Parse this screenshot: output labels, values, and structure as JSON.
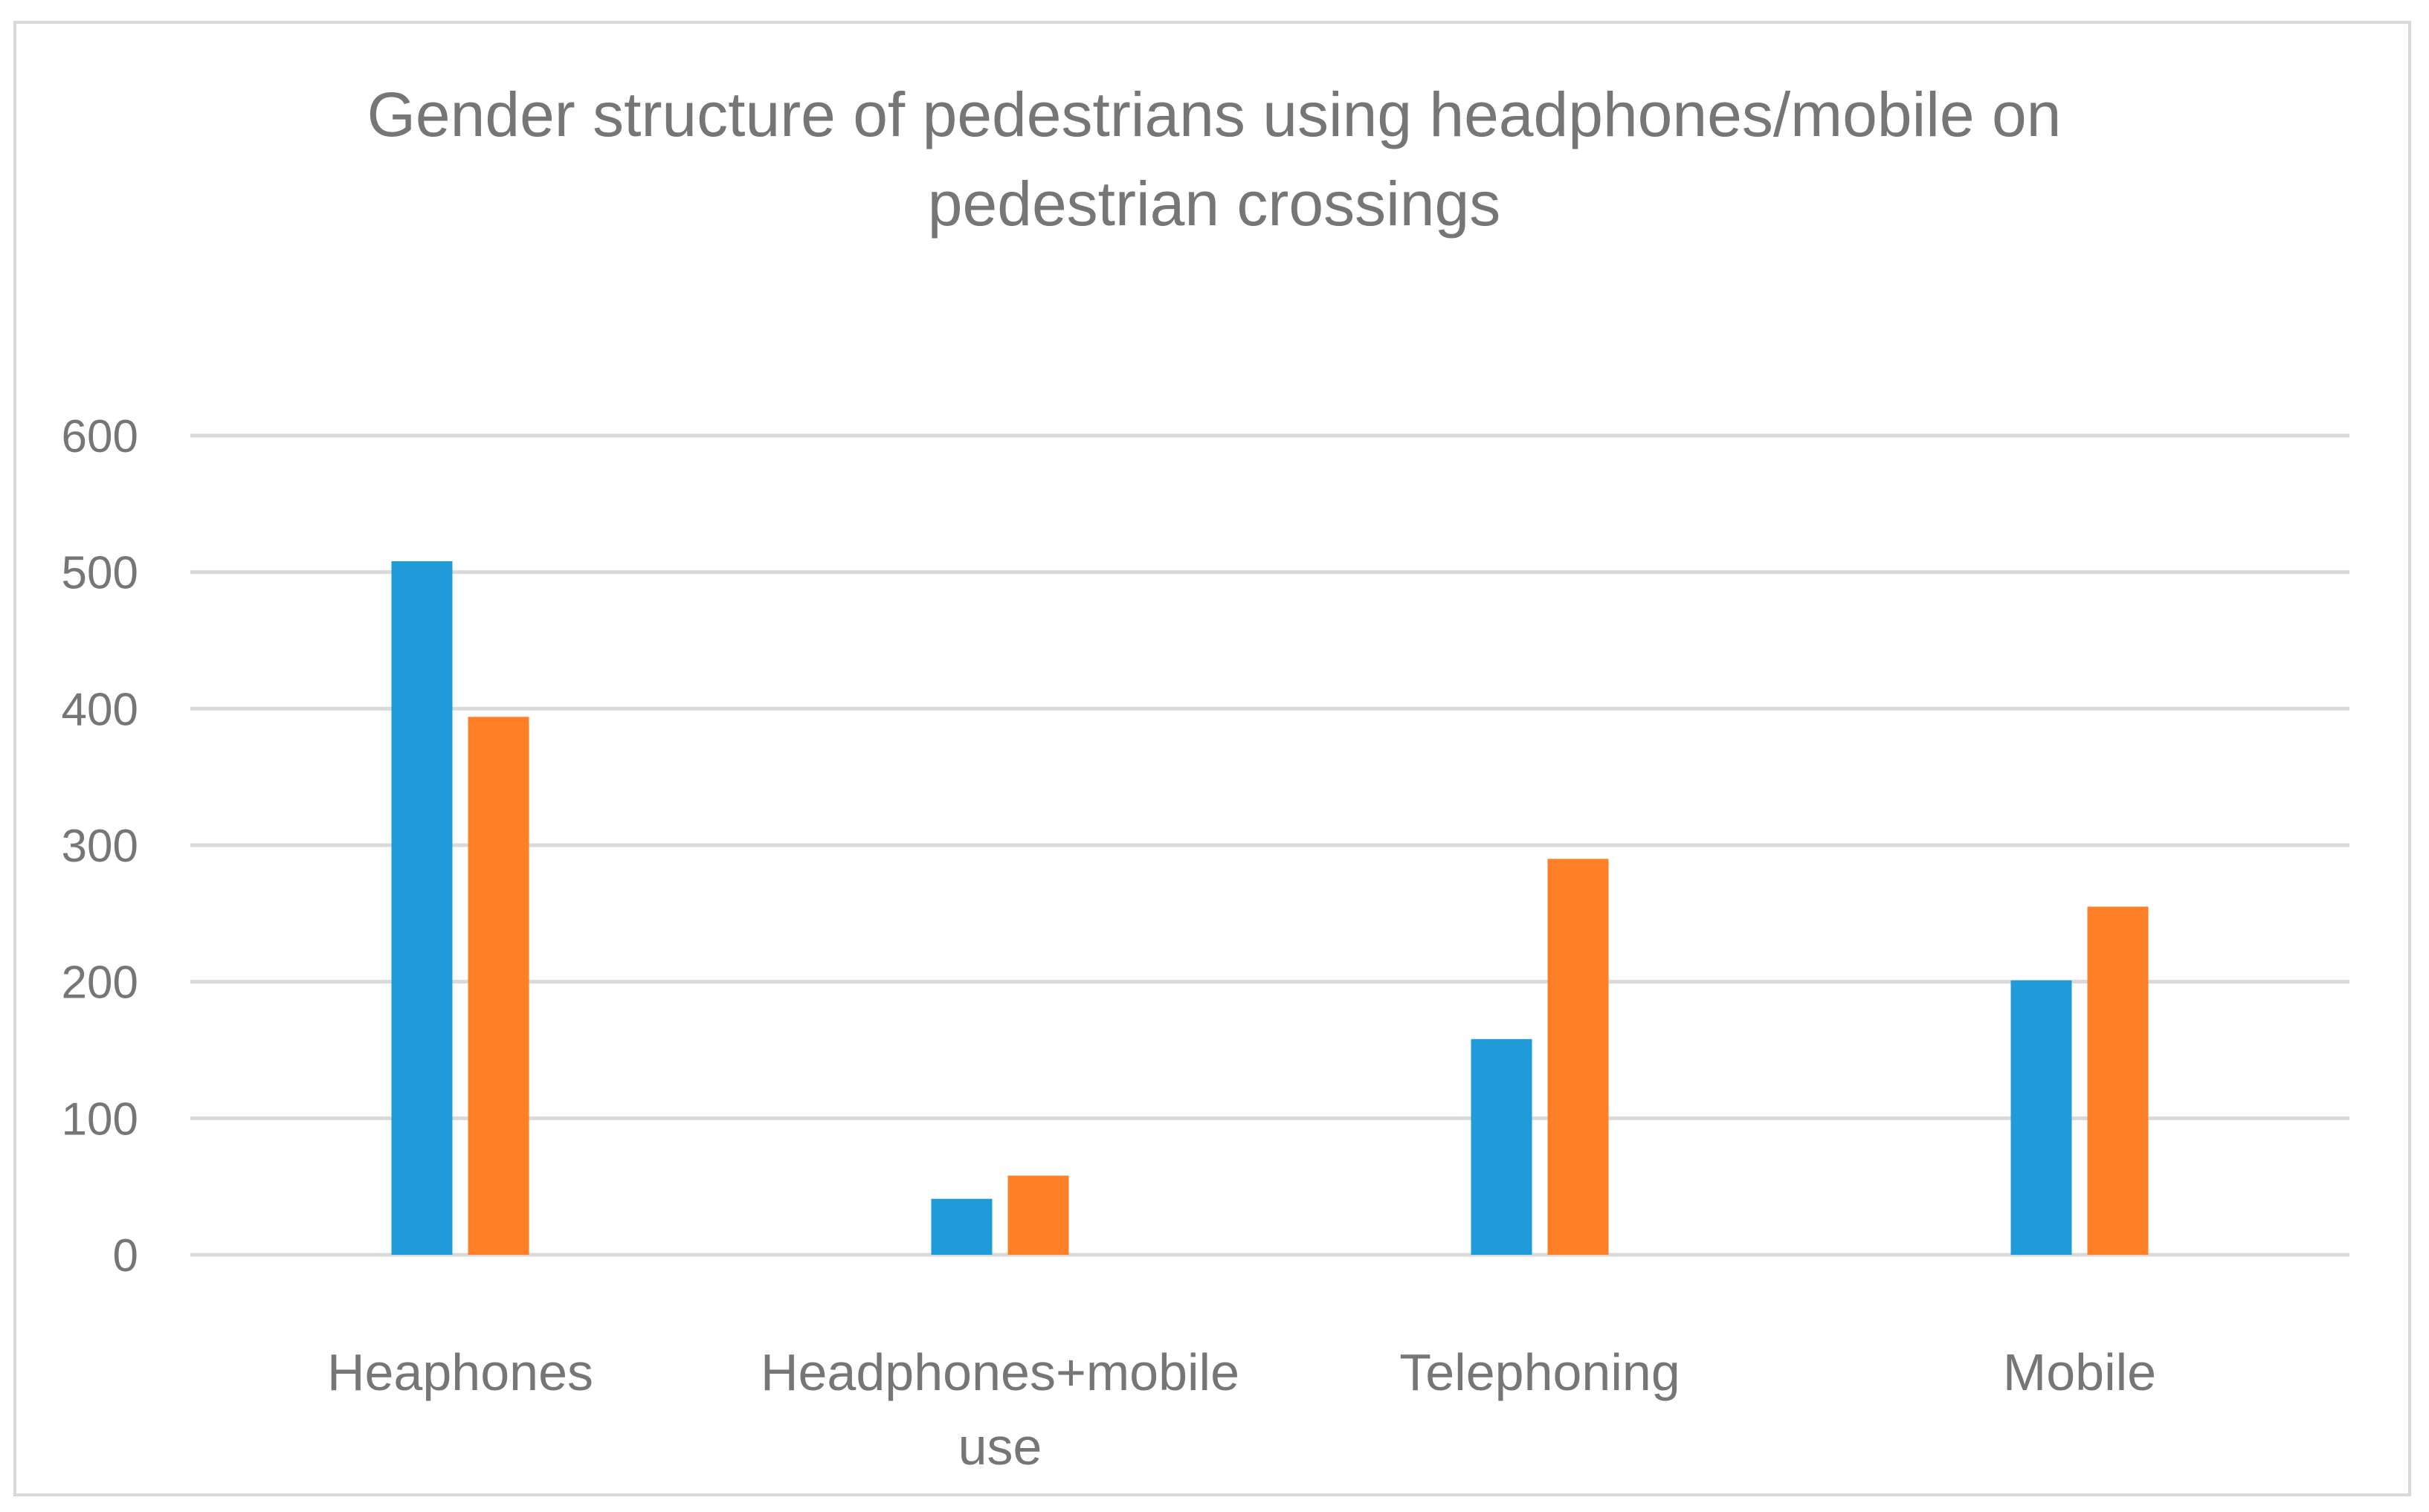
{
  "chart_data": {
    "type": "bar",
    "title_lines": [
      "Gender structure of pedestrians using headphones/mobile on",
      "pedestrian crossings"
    ],
    "categories": [
      [
        "Heaphones"
      ],
      [
        "Headphones+mobile",
        "use"
      ],
      [
        "Telephoning"
      ],
      [
        "Mobile"
      ]
    ],
    "series": [
      {
        "color": "#1f9bd9",
        "values": [
          508,
          41,
          158,
          201
        ]
      },
      {
        "color": "#ff7f27",
        "values": [
          394,
          58,
          290,
          255
        ]
      }
    ],
    "yticks": [
      "0",
      "100",
      "200",
      "300",
      "400",
      "500",
      "600"
    ],
    "ylim": [
      0,
      600
    ],
    "grid": true,
    "legend": "none",
    "colors": {
      "gridline": "#d9d9d9",
      "text": "#767676"
    }
  }
}
